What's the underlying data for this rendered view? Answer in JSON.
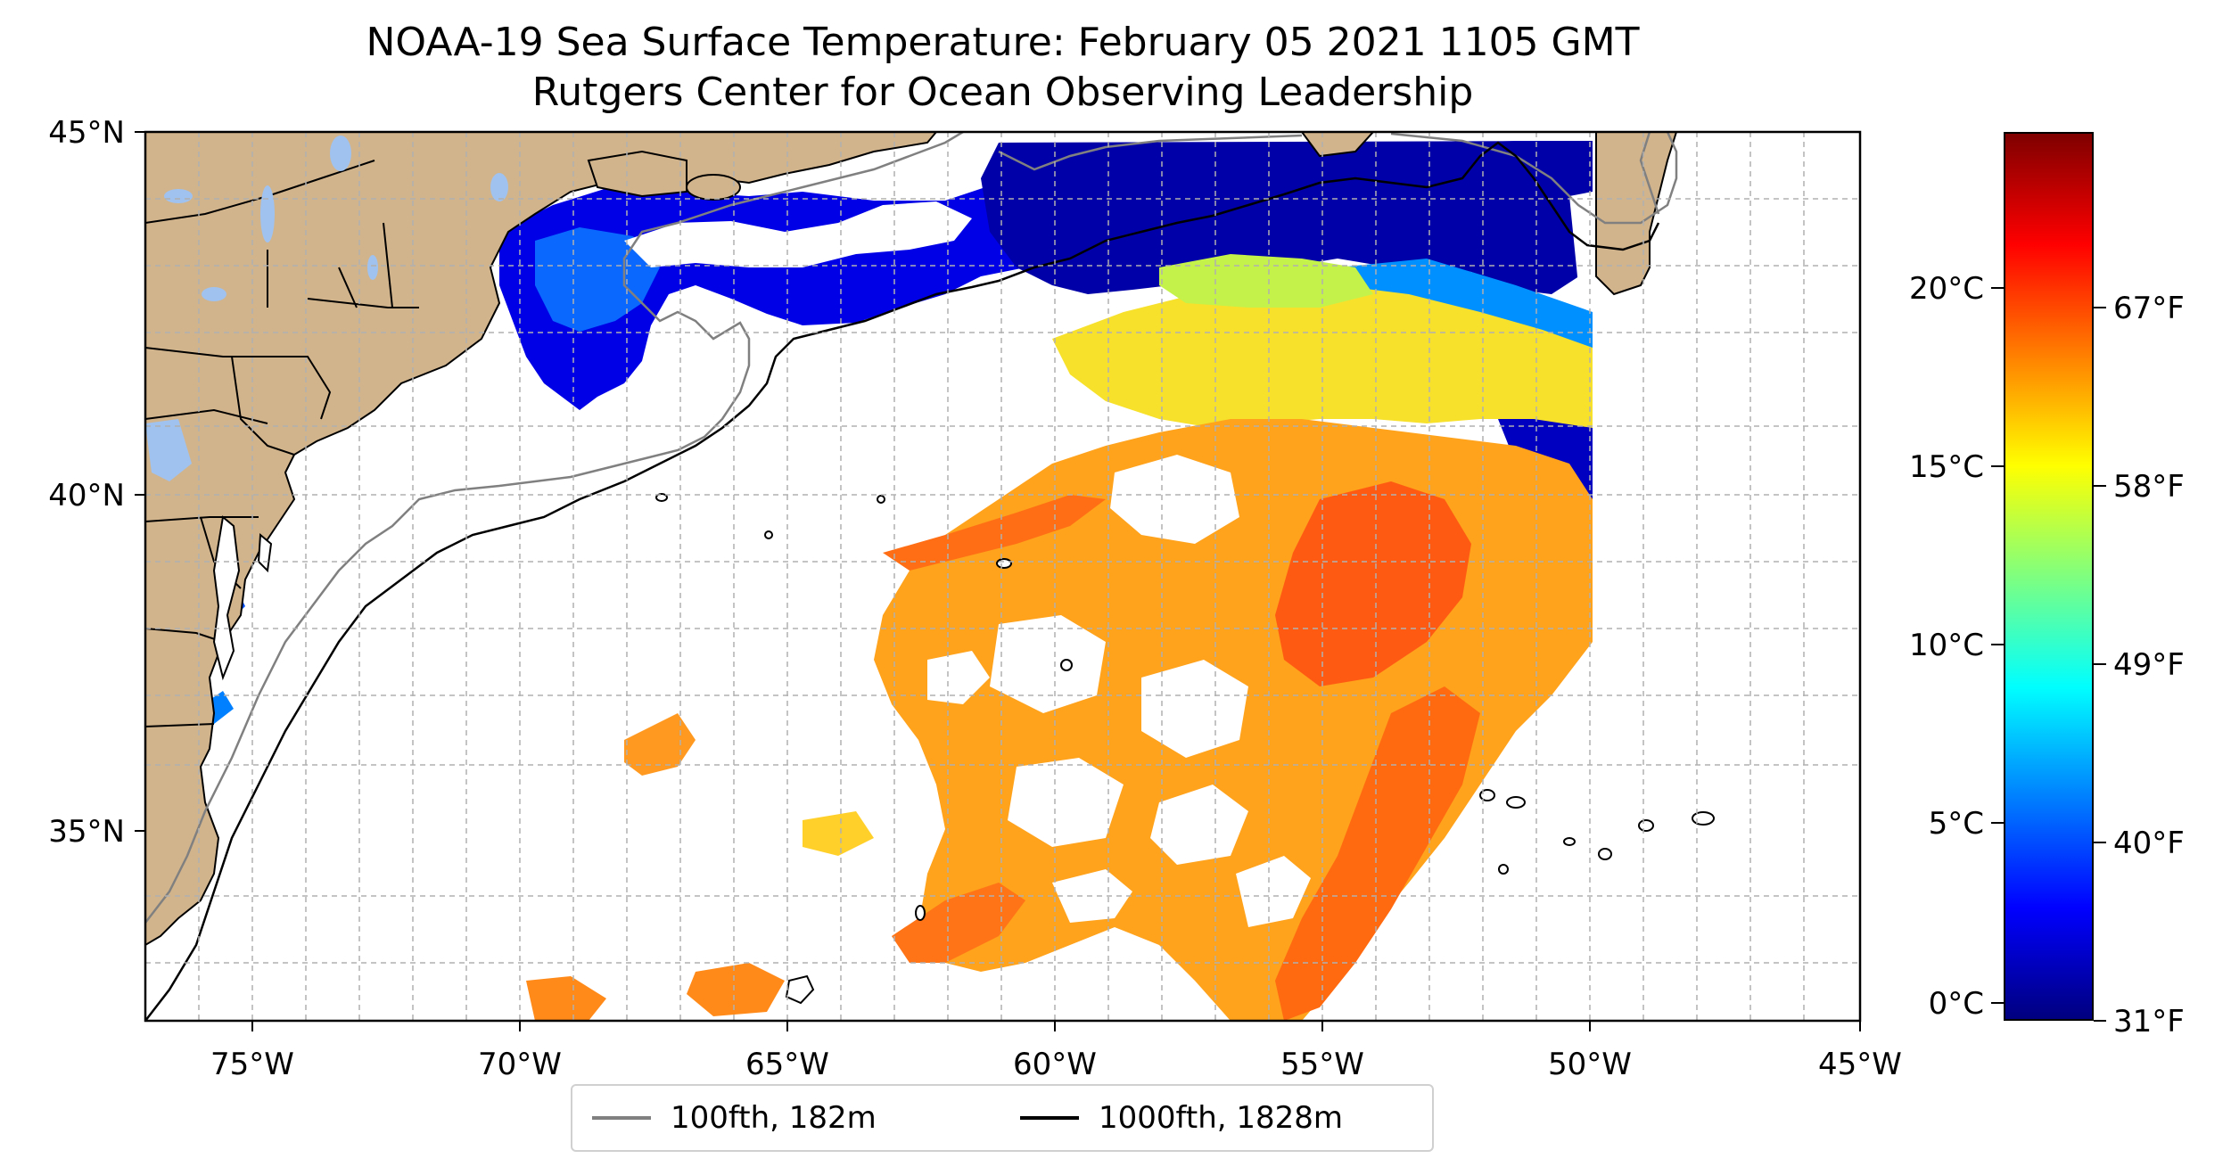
{
  "title": {
    "line1": "NOAA-19 Sea Surface Temperature: February 05 2021 1105 GMT",
    "line2": "Rutgers Center for Ocean Observing Leadership"
  },
  "map": {
    "lon_range": [
      -77,
      -45
    ],
    "lat_range": [
      32.2,
      45
    ],
    "lon_ticks": [
      "75°W",
      "70°W",
      "65°W",
      "60°W",
      "55°W",
      "50°W",
      "45°W"
    ],
    "lat_ticks": [
      "45°N",
      "40°N",
      "35°N"
    ],
    "gridlines": true,
    "land_color": "#d2b48c",
    "lake_color": "#9fc2ef",
    "ocean_background": "#ffffff"
  },
  "legend": {
    "placement": "bottom-center",
    "items": [
      {
        "label": "100fth, 182m",
        "color": "#808080"
      },
      {
        "label": "1000fth, 1828m",
        "color": "#000000"
      }
    ]
  },
  "colorbar": {
    "colormap": "jet",
    "celsius_ticks": [
      "0°C",
      "5°C",
      "10°C",
      "15°C",
      "20°C"
    ],
    "fahrenheit_ticks": [
      "31°F",
      "40°F",
      "49°F",
      "58°F",
      "67°F"
    ]
  }
}
